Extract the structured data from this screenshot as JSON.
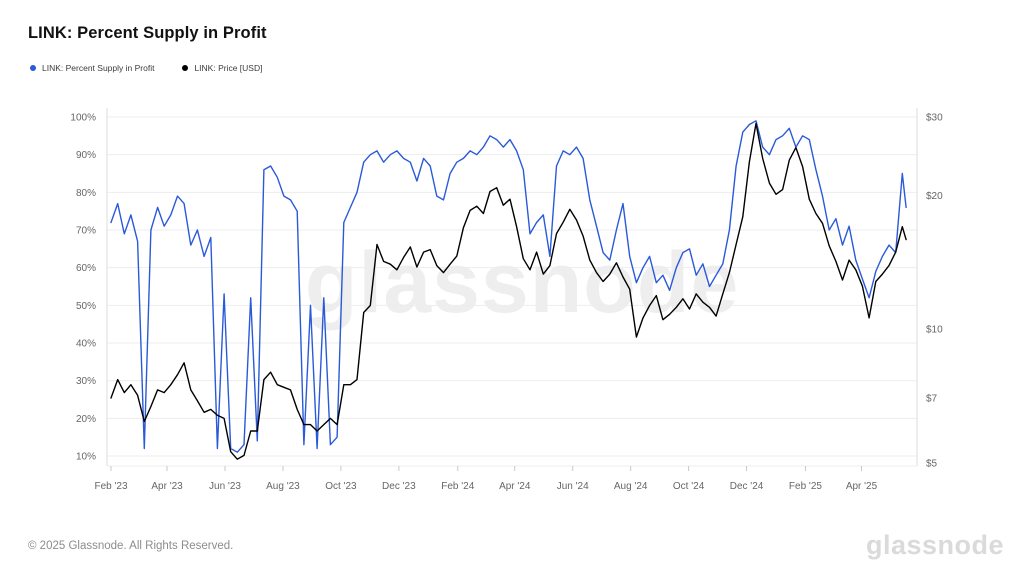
{
  "header": {
    "title": "LINK: Percent Supply in Profit"
  },
  "footer": {
    "copyright": "© 2025 Glassnode. All Rights Reserved.",
    "logo_text": "glassnode"
  },
  "chart_data": {
    "type": "line",
    "title": "LINK: Percent Supply in Profit",
    "watermark": "glassnode",
    "grid": "horizontal",
    "legend_position": "top-left",
    "x_unit": "date",
    "x": [
      "2023-02-01",
      "2023-02-08",
      "2023-02-15",
      "2023-02-22",
      "2023-03-01",
      "2023-03-08",
      "2023-03-15",
      "2023-03-22",
      "2023-03-29",
      "2023-04-05",
      "2023-04-12",
      "2023-04-19",
      "2023-04-26",
      "2023-05-03",
      "2023-05-10",
      "2023-05-17",
      "2023-05-24",
      "2023-05-31",
      "2023-06-07",
      "2023-06-14",
      "2023-06-21",
      "2023-06-28",
      "2023-07-05",
      "2023-07-12",
      "2023-07-19",
      "2023-07-26",
      "2023-08-02",
      "2023-08-09",
      "2023-08-16",
      "2023-08-23",
      "2023-08-30",
      "2023-09-06",
      "2023-09-13",
      "2023-09-20",
      "2023-09-27",
      "2023-10-04",
      "2023-10-11",
      "2023-10-18",
      "2023-10-25",
      "2023-11-01",
      "2023-11-08",
      "2023-11-15",
      "2023-11-22",
      "2023-11-29",
      "2023-12-06",
      "2023-12-13",
      "2023-12-20",
      "2023-12-27",
      "2024-01-03",
      "2024-01-10",
      "2024-01-17",
      "2024-01-24",
      "2024-01-31",
      "2024-02-07",
      "2024-02-14",
      "2024-02-21",
      "2024-02-28",
      "2024-03-06",
      "2024-03-13",
      "2024-03-20",
      "2024-03-27",
      "2024-04-03",
      "2024-04-10",
      "2024-04-17",
      "2024-04-24",
      "2024-05-01",
      "2024-05-08",
      "2024-05-15",
      "2024-05-22",
      "2024-05-29",
      "2024-06-05",
      "2024-06-12",
      "2024-06-19",
      "2024-06-26",
      "2024-07-03",
      "2024-07-10",
      "2024-07-17",
      "2024-07-24",
      "2024-07-31",
      "2024-08-07",
      "2024-08-14",
      "2024-08-21",
      "2024-08-28",
      "2024-09-04",
      "2024-09-11",
      "2024-09-18",
      "2024-09-25",
      "2024-10-02",
      "2024-10-09",
      "2024-10-16",
      "2024-10-23",
      "2024-10-30",
      "2024-11-06",
      "2024-11-13",
      "2024-11-20",
      "2024-11-27",
      "2024-12-04",
      "2024-12-11",
      "2024-12-18",
      "2024-12-25",
      "2025-01-01",
      "2025-01-08",
      "2025-01-15",
      "2025-01-22",
      "2025-01-29",
      "2025-02-05",
      "2025-02-12",
      "2025-02-19",
      "2025-02-26",
      "2025-03-05",
      "2025-03-12",
      "2025-03-19",
      "2025-03-26",
      "2025-04-02",
      "2025-04-09",
      "2025-04-16",
      "2025-04-23",
      "2025-04-30",
      "2025-05-07",
      "2025-05-14",
      "2025-05-18"
    ],
    "series": [
      {
        "name": "LINK: Percent Supply in Profit",
        "color": "#2a5ada",
        "axis": "left",
        "unit": "%",
        "values": [
          72,
          77,
          69,
          74,
          67,
          12,
          70,
          76,
          71,
          74,
          79,
          77,
          66,
          70,
          63,
          68,
          12,
          53,
          12,
          11,
          13,
          52,
          14,
          86,
          87,
          84,
          79,
          78,
          75,
          13,
          50,
          12,
          52,
          13,
          15,
          72,
          76,
          80,
          88,
          90,
          91,
          88,
          90,
          91,
          89,
          88,
          83,
          89,
          87,
          79,
          78,
          85,
          88,
          89,
          91,
          90,
          92,
          95,
          94,
          92,
          94,
          91,
          86,
          69,
          72,
          74,
          63,
          87,
          91,
          90,
          92,
          89,
          78,
          71,
          64,
          62,
          70,
          77,
          63,
          56,
          60,
          63,
          56,
          58,
          54,
          60,
          64,
          65,
          58,
          61,
          55,
          58,
          61,
          70,
          87,
          96,
          98,
          99,
          92,
          90,
          94,
          95,
          97,
          92,
          95,
          94,
          86,
          79,
          70,
          73,
          66,
          71,
          62,
          57,
          52,
          59,
          63,
          66,
          64,
          85,
          76
        ]
      },
      {
        "name": "LINK: Price [USD]",
        "color": "#000000",
        "axis": "right",
        "unit": "USD",
        "values": [
          7.0,
          7.7,
          7.2,
          7.5,
          7.1,
          6.2,
          6.7,
          7.3,
          7.2,
          7.5,
          7.9,
          8.4,
          7.3,
          6.9,
          6.5,
          6.6,
          6.4,
          6.3,
          5.3,
          5.1,
          5.2,
          5.9,
          5.9,
          7.7,
          8.0,
          7.5,
          7.4,
          7.3,
          6.6,
          6.1,
          6.1,
          5.9,
          6.1,
          6.3,
          6.1,
          7.5,
          7.5,
          7.7,
          10.9,
          11.3,
          15.5,
          14.2,
          14.0,
          13.6,
          14.5,
          15.3,
          13.8,
          14.9,
          15.1,
          13.9,
          13.4,
          14.0,
          14.6,
          16.9,
          18.5,
          18.9,
          18.2,
          20.4,
          20.8,
          19.0,
          19.6,
          17.0,
          14.4,
          13.6,
          14.9,
          13.3,
          13.9,
          16.4,
          17.4,
          18.6,
          17.6,
          16.2,
          14.3,
          13.4,
          12.8,
          13.3,
          14.1,
          13.1,
          12.3,
          9.6,
          10.6,
          11.3,
          11.9,
          10.5,
          10.8,
          11.2,
          11.7,
          11.1,
          12.0,
          11.5,
          11.2,
          10.7,
          12.0,
          13.4,
          15.5,
          17.9,
          23.8,
          29.0,
          24.2,
          21.3,
          20.1,
          20.6,
          24.0,
          25.6,
          23.2,
          19.6,
          18.2,
          17.3,
          15.4,
          14.2,
          12.9,
          14.3,
          13.6,
          12.5,
          10.6,
          12.8,
          13.3,
          13.9,
          14.9,
          17.0,
          15.9
        ]
      }
    ],
    "left_axis": {
      "scale": "linear",
      "range": [
        10,
        100
      ],
      "ticks": [
        {
          "label": "10%",
          "value": 10
        },
        {
          "label": "20%",
          "value": 20
        },
        {
          "label": "30%",
          "value": 30
        },
        {
          "label": "40%",
          "value": 40
        },
        {
          "label": "50%",
          "value": 50
        },
        {
          "label": "60%",
          "value": 60
        },
        {
          "label": "70%",
          "value": 70
        },
        {
          "label": "80%",
          "value": 80
        },
        {
          "label": "90%",
          "value": 90
        },
        {
          "label": "100%",
          "value": 100
        }
      ]
    },
    "right_axis": {
      "scale": "log",
      "range": [
        5,
        30
      ],
      "ticks": [
        {
          "label": "$5",
          "value": 5
        },
        {
          "label": "$7",
          "value": 7
        },
        {
          "label": "$10",
          "value": 10
        },
        {
          "label": "$20",
          "value": 20
        },
        {
          "label": "$30",
          "value": 30
        }
      ]
    },
    "x_ticks": [
      {
        "label": "Feb '23",
        "date": "2023-02-01"
      },
      {
        "label": "Apr '23",
        "date": "2023-04-01"
      },
      {
        "label": "Jun '23",
        "date": "2023-06-01"
      },
      {
        "label": "Aug '23",
        "date": "2023-08-01"
      },
      {
        "label": "Oct '23",
        "date": "2023-10-01"
      },
      {
        "label": "Dec '23",
        "date": "2023-12-01"
      },
      {
        "label": "Feb '24",
        "date": "2024-02-01"
      },
      {
        "label": "Apr '24",
        "date": "2024-04-01"
      },
      {
        "label": "Jun '24",
        "date": "2024-06-01"
      },
      {
        "label": "Aug '24",
        "date": "2024-08-01"
      },
      {
        "label": "Oct '24",
        "date": "2024-10-01"
      },
      {
        "label": "Dec '24",
        "date": "2024-12-01"
      },
      {
        "label": "Feb '25",
        "date": "2025-02-01"
      },
      {
        "label": "Apr '25",
        "date": "2025-04-01"
      }
    ]
  }
}
